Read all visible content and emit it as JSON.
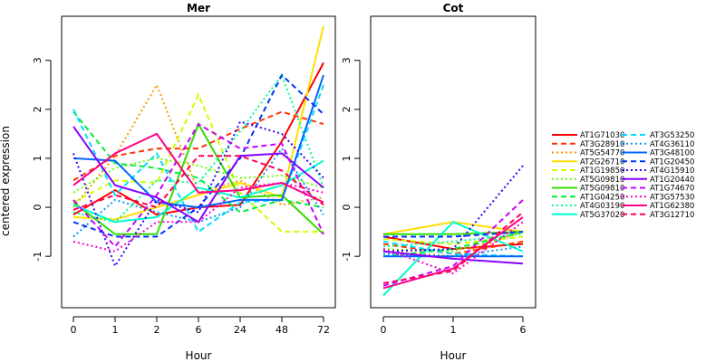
{
  "chart_data": {
    "type": "line",
    "ylabel": "centered expression",
    "xlabel": "Hour",
    "ylim": [
      -2.05,
      3.9
    ],
    "yticks": [
      -1,
      0,
      1,
      2,
      3
    ],
    "grid": false,
    "legend_placement": "right",
    "panels": [
      {
        "title": "Mer",
        "categories": [
          "0",
          "1",
          "2",
          "6",
          "24",
          "48",
          "72"
        ],
        "series": [
          {
            "name": "AT1G71030",
            "values": [
              -0.15,
              0.35,
              -0.15,
              0.0,
              0.05,
              1.35,
              2.95
            ]
          },
          {
            "name": "AT3G28910",
            "values": [
              0.55,
              1.05,
              1.2,
              1.2,
              1.6,
              1.95,
              1.7
            ]
          },
          {
            "name": "AT5G54770",
            "values": [
              0.0,
              1.05,
              2.5,
              0.3,
              0.55,
              0.05,
              0.2
            ]
          },
          {
            "name": "AT2G26710",
            "values": [
              -0.2,
              -0.25,
              0.0,
              0.25,
              0.5,
              0.2,
              3.7
            ]
          },
          {
            "name": "AT1G19850",
            "values": [
              0.1,
              0.55,
              0.5,
              2.3,
              0.3,
              -0.5,
              -0.5
            ]
          },
          {
            "name": "AT5G09810",
            "values": [
              0.3,
              0.8,
              1.0,
              0.85,
              0.6,
              0.65,
              0.4
            ]
          },
          {
            "name": "AT5G09810",
            "values": [
              0.1,
              -0.55,
              -0.55,
              1.7,
              0.2,
              0.25,
              -0.55
            ]
          },
          {
            "name": "AT1G04250",
            "values": [
              1.95,
              0.9,
              0.8,
              0.6,
              -0.1,
              0.15,
              0.0
            ]
          },
          {
            "name": "AT4G03190",
            "values": [
              -0.1,
              -0.3,
              0.55,
              0.5,
              1.55,
              2.7,
              0.4
            ]
          },
          {
            "name": "AT5G37020",
            "values": [
              0.05,
              -0.3,
              -0.2,
              0.4,
              0.2,
              0.45,
              0.95
            ]
          },
          {
            "name": "AT3G53250",
            "values": [
              2.0,
              0.25,
              1.1,
              -0.5,
              0.1,
              0.15,
              2.5
            ]
          },
          {
            "name": "AT4G36110",
            "values": [
              -0.6,
              0.15,
              -0.1,
              -0.3,
              0.0,
              1.2,
              -0.15
            ]
          },
          {
            "name": "AT3G48100",
            "values": [
              1.0,
              0.95,
              0.1,
              0.0,
              0.15,
              0.15,
              2.7
            ]
          },
          {
            "name": "AT1G20450",
            "values": [
              -0.3,
              -0.6,
              -0.6,
              0.0,
              1.0,
              2.7,
              1.9
            ]
          },
          {
            "name": "AT4G15910",
            "values": [
              1.1,
              -1.2,
              0.15,
              -0.1,
              1.75,
              1.5,
              0.6
            ]
          },
          {
            "name": "AT1G20440",
            "values": [
              1.65,
              0.45,
              0.2,
              -0.3,
              1.05,
              1.1,
              0.4
            ]
          },
          {
            "name": "AT1G74670",
            "values": [
              0.15,
              -0.8,
              0.25,
              1.7,
              1.2,
              1.3,
              -0.55
            ]
          },
          {
            "name": "AT3G57530",
            "values": [
              -0.7,
              -0.9,
              -0.3,
              -0.3,
              0.4,
              0.5,
              0.3
            ]
          },
          {
            "name": "AT1G62380",
            "values": [
              0.45,
              1.1,
              1.5,
              0.3,
              0.35,
              0.5,
              0.1
            ]
          },
          {
            "name": "AT3G12710",
            "values": [
              -0.05,
              0.25,
              0.0,
              1.05,
              1.05,
              0.75,
              0.05
            ]
          }
        ]
      },
      {
        "title": "Cot",
        "categories": [
          "0",
          "1",
          "6"
        ],
        "series": [
          {
            "name": "AT1G71030",
            "values": [
              -0.6,
              -0.85,
              -0.75
            ]
          },
          {
            "name": "AT3G28910",
            "values": [
              -0.75,
              -0.95,
              -0.7
            ]
          },
          {
            "name": "AT5G54770",
            "values": [
              -0.9,
              -1.0,
              -0.5
            ]
          },
          {
            "name": "AT2G26710",
            "values": [
              -0.55,
              -0.3,
              -0.5
            ]
          },
          {
            "name": "AT1G19850",
            "values": [
              -0.65,
              -0.75,
              -0.6
            ]
          },
          {
            "name": "AT5G09810",
            "values": [
              -0.85,
              -0.9,
              -0.5
            ]
          },
          {
            "name": "AT5G09810",
            "values": [
              -0.55,
              -0.55,
              -0.5
            ]
          },
          {
            "name": "AT1G04250",
            "values": [
              -1.0,
              -0.85,
              -0.5
            ]
          },
          {
            "name": "AT4G03190",
            "values": [
              -0.8,
              -0.7,
              -0.55
            ]
          },
          {
            "name": "AT5G37020",
            "values": [
              -1.8,
              -0.3,
              -0.9
            ]
          },
          {
            "name": "AT3G53250",
            "values": [
              -0.7,
              -0.95,
              -1.0
            ]
          },
          {
            "name": "AT4G36110",
            "values": [
              -0.95,
              -1.0,
              -0.8
            ]
          },
          {
            "name": "AT3G48100",
            "values": [
              -1.0,
              -1.0,
              -1.0
            ]
          },
          {
            "name": "AT1G20450",
            "values": [
              -0.6,
              -0.6,
              -0.5
            ]
          },
          {
            "name": "AT4G15910",
            "values": [
              -0.9,
              -0.85,
              0.85
            ]
          },
          {
            "name": "AT1G20440",
            "values": [
              -0.9,
              -1.05,
              -1.15
            ]
          },
          {
            "name": "AT1G74670",
            "values": [
              -1.6,
              -1.2,
              0.15
            ]
          },
          {
            "name": "AT3G57530",
            "values": [
              -0.85,
              -1.35,
              -0.3
            ]
          },
          {
            "name": "AT1G62380",
            "values": [
              -1.65,
              -1.25,
              -0.2
            ]
          },
          {
            "name": "AT3G12710",
            "values": [
              -1.55,
              -1.3,
              -0.1
            ]
          }
        ]
      }
    ],
    "styles": [
      {
        "color": "#ff0000",
        "dash": "solid"
      },
      {
        "color": "#ff3300",
        "dash": "dashed"
      },
      {
        "color": "#ff9900",
        "dash": "dotted"
      },
      {
        "color": "#ffdd00",
        "dash": "solid"
      },
      {
        "color": "#ccff00",
        "dash": "dashed"
      },
      {
        "color": "#66ff00",
        "dash": "dotted"
      },
      {
        "color": "#33dd00",
        "dash": "solid"
      },
      {
        "color": "#00ee33",
        "dash": "dashed"
      },
      {
        "color": "#00ff88",
        "dash": "dotted"
      },
      {
        "color": "#00ffcc",
        "dash": "solid"
      },
      {
        "color": "#00ddff",
        "dash": "dashed"
      },
      {
        "color": "#0099ff",
        "dash": "dotted"
      },
      {
        "color": "#0066ff",
        "dash": "solid"
      },
      {
        "color": "#0033ff",
        "dash": "dashed"
      },
      {
        "color": "#3300ff",
        "dash": "dotted"
      },
      {
        "color": "#8800ff",
        "dash": "solid"
      },
      {
        "color": "#cc00ff",
        "dash": "dashed"
      },
      {
        "color": "#ff00cc",
        "dash": "dotted"
      },
      {
        "color": "#ff0088",
        "dash": "solid"
      },
      {
        "color": "#ff0055",
        "dash": "dashed"
      }
    ]
  }
}
